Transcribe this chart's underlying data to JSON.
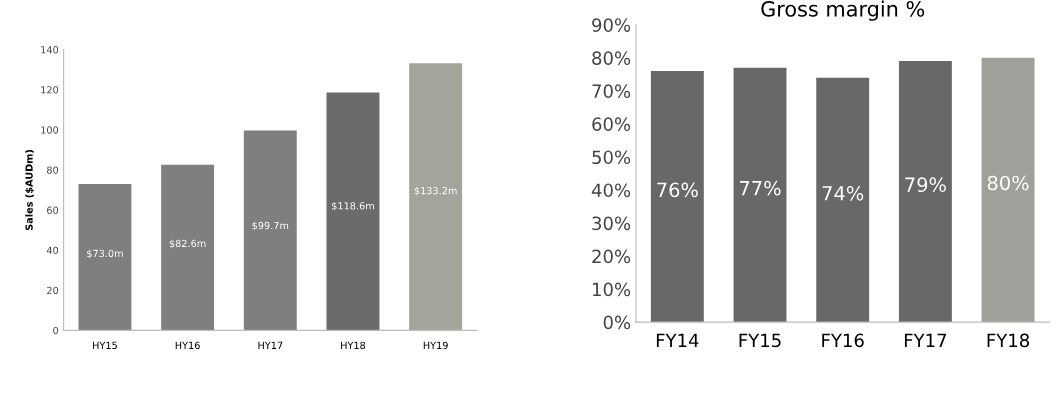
{
  "chart_data": [
    {
      "type": "bar",
      "ylabel": "Sales ($AUDm)",
      "categories": [
        "HY15",
        "HY16",
        "HY17",
        "HY18",
        "HY19"
      ],
      "values": [
        73.0,
        82.6,
        99.7,
        118.6,
        133.2
      ],
      "value_labels": [
        "$73.0m",
        "$82.6m",
        "$99.7m",
        "$118.6m",
        "$133.2m"
      ],
      "colors": [
        "#7f7f7f",
        "#7f7f7f",
        "#7f7f7f",
        "#6b6b6b",
        "#a4a49c"
      ],
      "ylim": [
        0,
        140
      ],
      "yticks": [
        0,
        20,
        40,
        60,
        80,
        100,
        120,
        140
      ],
      "grid": false,
      "legend": false
    },
    {
      "type": "bar",
      "title": "Gross margin %",
      "categories": [
        "FY14",
        "FY15",
        "FY16",
        "FY17",
        "FY18"
      ],
      "values": [
        76,
        77,
        74,
        79,
        80
      ],
      "value_labels": [
        "76%",
        "77%",
        "74%",
        "79%",
        "80%"
      ],
      "colors": [
        "#686868",
        "#686868",
        "#686868",
        "#686868",
        "#a0a09a"
      ],
      "ylim": [
        0,
        90
      ],
      "yticks": [
        {
          "value": 0,
          "label": "0%"
        },
        {
          "value": 10,
          "label": "10%"
        },
        {
          "value": 20,
          "label": "20%"
        },
        {
          "value": 30,
          "label": "30%"
        },
        {
          "value": 40,
          "label": "40%"
        },
        {
          "value": 50,
          "label": "50%"
        },
        {
          "value": 60,
          "label": "60%"
        },
        {
          "value": 70,
          "label": "70%"
        },
        {
          "value": 80,
          "label": "80%"
        },
        {
          "value": 90,
          "label": "90%"
        }
      ],
      "grid": false,
      "legend": false
    }
  ]
}
